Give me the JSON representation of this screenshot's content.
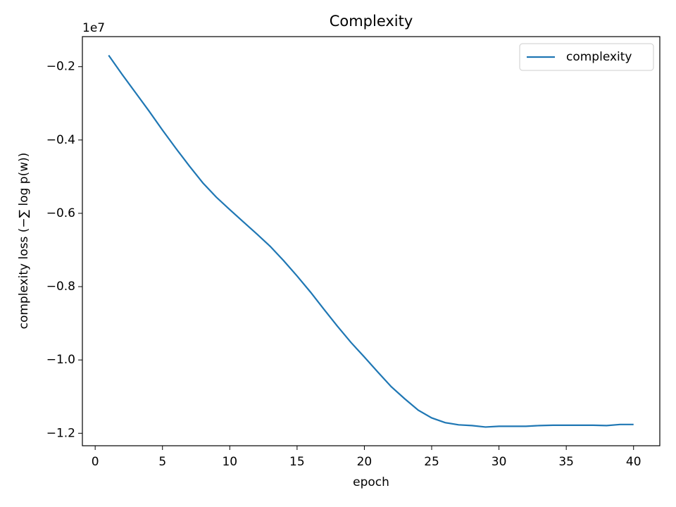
{
  "chart_data": {
    "type": "line",
    "title": "Complexity",
    "xlabel": "epoch",
    "ylabel": "complexity loss (−∑ log p(w))",
    "y_offset_label": "1e7",
    "x": [
      1,
      2,
      3,
      4,
      5,
      6,
      7,
      8,
      9,
      10,
      11,
      12,
      13,
      14,
      15,
      16,
      17,
      18,
      19,
      20,
      21,
      22,
      23,
      24,
      25,
      26,
      27,
      28,
      29,
      30,
      31,
      32,
      33,
      34,
      35,
      36,
      37,
      38,
      39,
      40
    ],
    "series": [
      {
        "name": "complexity",
        "color": "#1f77b4",
        "values": [
          -0.169,
          -0.221,
          -0.271,
          -0.321,
          -0.373,
          -0.423,
          -0.471,
          -0.517,
          -0.556,
          -0.59,
          -0.623,
          -0.656,
          -0.69,
          -0.729,
          -0.771,
          -0.815,
          -0.862,
          -0.908,
          -0.952,
          -0.992,
          -1.033,
          -1.073,
          -1.106,
          -1.137,
          -1.158,
          -1.171,
          -1.177,
          -1.179,
          -1.183,
          -1.181,
          -1.181,
          -1.181,
          -1.179,
          -1.178,
          -1.178,
          -1.178,
          -1.178,
          -1.179,
          -1.176,
          -1.176
        ]
      }
    ],
    "xlim": [
      -0.95,
      41.95
    ],
    "ylim": [
      -1.234,
      -0.118
    ],
    "xticks": [
      0,
      5,
      10,
      15,
      20,
      25,
      30,
      35,
      40
    ],
    "yticks": [
      {
        "value": -1.2,
        "label": "−1.2"
      },
      {
        "value": -1.0,
        "label": "−1.0"
      },
      {
        "value": -0.8,
        "label": "−0.8"
      },
      {
        "value": -0.6,
        "label": "−0.6"
      },
      {
        "value": -0.4,
        "label": "−0.4"
      },
      {
        "value": -0.2,
        "label": "−0.2"
      }
    ],
    "legend": "upper right",
    "grid": false
  }
}
